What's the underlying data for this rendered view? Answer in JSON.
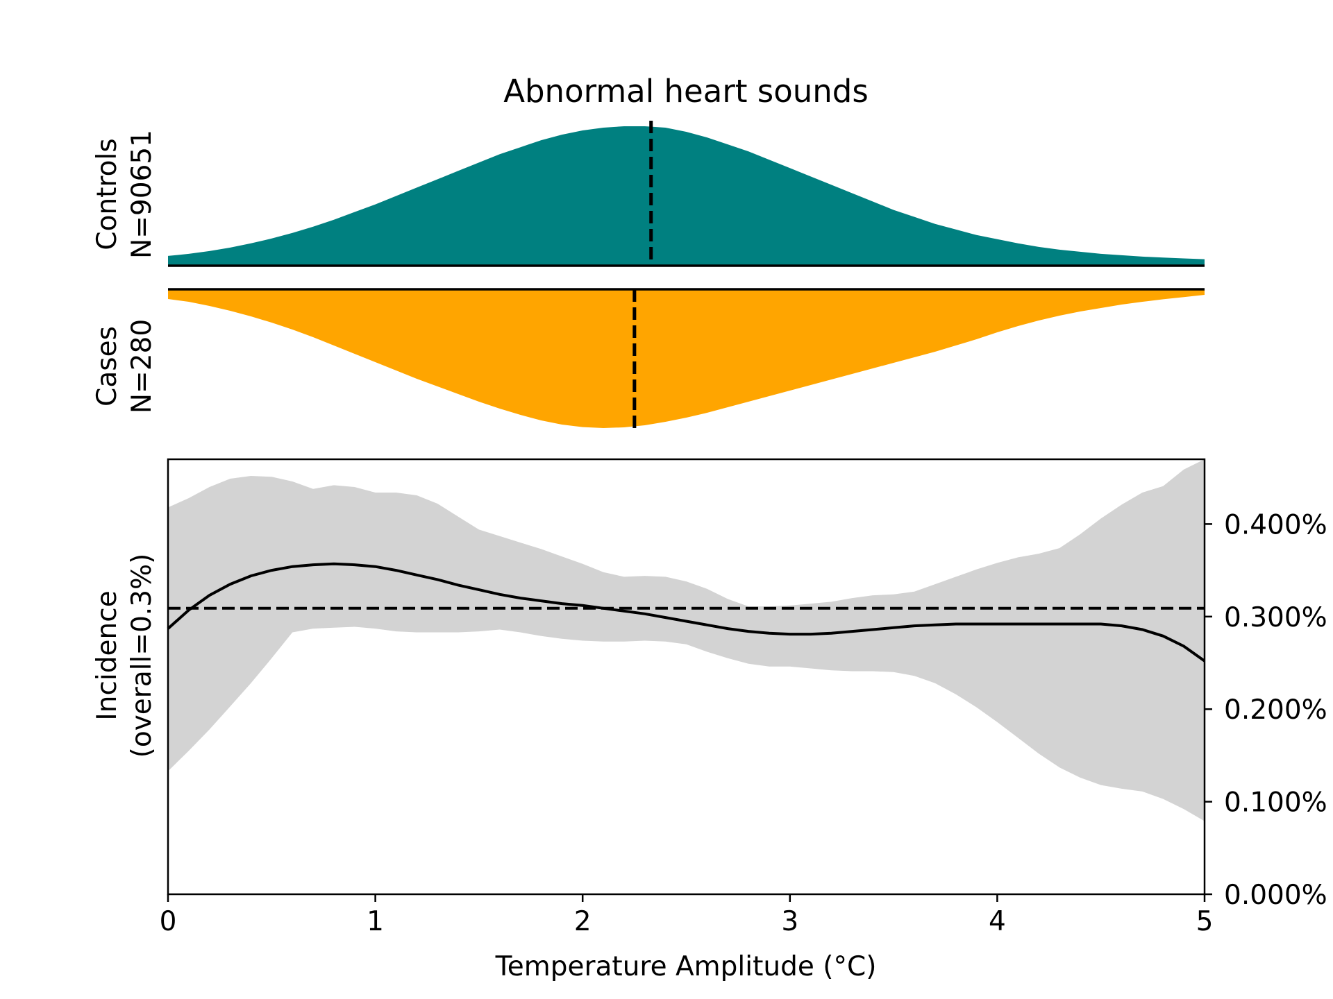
{
  "chart_data": [
    {
      "type": "area",
      "panel": "controls",
      "title": "Abnormal heart sounds",
      "ylabel_line1": "Controls",
      "ylabel_line2": "N=90651",
      "color": "#008080",
      "x": [
        0,
        0.1,
        0.2,
        0.3,
        0.4,
        0.5,
        0.6,
        0.7,
        0.8,
        0.9,
        1.0,
        1.1,
        1.2,
        1.3,
        1.4,
        1.5,
        1.6,
        1.7,
        1.8,
        1.9,
        2.0,
        2.1,
        2.2,
        2.3,
        2.4,
        2.5,
        2.6,
        2.7,
        2.8,
        2.9,
        3.0,
        3.1,
        3.2,
        3.3,
        3.4,
        3.5,
        3.6,
        3.7,
        3.8,
        3.9,
        4.0,
        4.1,
        4.2,
        4.3,
        4.4,
        4.5,
        4.6,
        4.7,
        4.8,
        4.9,
        5.0
      ],
      "density": [
        0.07,
        0.085,
        0.105,
        0.13,
        0.16,
        0.195,
        0.235,
        0.28,
        0.33,
        0.385,
        0.44,
        0.5,
        0.56,
        0.62,
        0.68,
        0.74,
        0.8,
        0.85,
        0.9,
        0.94,
        0.97,
        0.99,
        1.0,
        1.0,
        0.99,
        0.96,
        0.92,
        0.87,
        0.82,
        0.76,
        0.7,
        0.64,
        0.58,
        0.52,
        0.46,
        0.4,
        0.35,
        0.3,
        0.26,
        0.22,
        0.19,
        0.16,
        0.135,
        0.115,
        0.1,
        0.085,
        0.075,
        0.065,
        0.058,
        0.052,
        0.047
      ],
      "median": 2.33
    },
    {
      "type": "area",
      "panel": "cases",
      "ylabel_line1": "Cases",
      "ylabel_line2": "N=280",
      "color": "#FFA500",
      "x": [
        0,
        0.1,
        0.2,
        0.3,
        0.4,
        0.5,
        0.6,
        0.7,
        0.8,
        0.9,
        1.0,
        1.1,
        1.2,
        1.3,
        1.4,
        1.5,
        1.6,
        1.7,
        1.8,
        1.9,
        2.0,
        2.1,
        2.2,
        2.3,
        2.4,
        2.5,
        2.6,
        2.7,
        2.8,
        2.9,
        3.0,
        3.1,
        3.2,
        3.3,
        3.4,
        3.5,
        3.6,
        3.7,
        3.8,
        3.9,
        4.0,
        4.1,
        4.2,
        4.3,
        4.4,
        4.5,
        4.6,
        4.7,
        4.8,
        4.9,
        5.0
      ],
      "density": [
        0.07,
        0.09,
        0.12,
        0.155,
        0.195,
        0.24,
        0.29,
        0.345,
        0.405,
        0.465,
        0.525,
        0.585,
        0.645,
        0.7,
        0.755,
        0.81,
        0.86,
        0.905,
        0.945,
        0.975,
        0.993,
        1.0,
        0.995,
        0.98,
        0.955,
        0.925,
        0.89,
        0.85,
        0.81,
        0.77,
        0.73,
        0.69,
        0.65,
        0.61,
        0.57,
        0.53,
        0.49,
        0.45,
        0.405,
        0.36,
        0.31,
        0.265,
        0.225,
        0.19,
        0.16,
        0.135,
        0.11,
        0.09,
        0.072,
        0.056,
        0.04
      ],
      "median": 2.25
    },
    {
      "type": "line",
      "panel": "incidence",
      "xlabel": "Temperature Amplitude (°C)",
      "ylabel_line1": "Incidence",
      "ylabel_line2": "(overall=0.3%)",
      "xlim": [
        0,
        5
      ],
      "ylim": [
        0,
        0.0047
      ],
      "xticks": [
        0,
        1,
        2,
        3,
        4,
        5
      ],
      "xtick_labels": [
        "0",
        "1",
        "2",
        "3",
        "4",
        "5"
      ],
      "yticks": [
        0,
        0.001,
        0.002,
        0.003,
        0.004
      ],
      "ytick_labels": [
        "0.000%",
        "0.100%",
        "0.200%",
        "0.300%",
        "0.400%"
      ],
      "overall": 0.00309,
      "band_color": "#d3d3d3",
      "x": [
        0,
        0.1,
        0.2,
        0.3,
        0.4,
        0.5,
        0.6,
        0.7,
        0.8,
        0.9,
        1.0,
        1.1,
        1.2,
        1.3,
        1.4,
        1.5,
        1.6,
        1.7,
        1.8,
        1.9,
        2.0,
        2.1,
        2.2,
        2.3,
        2.4,
        2.5,
        2.6,
        2.7,
        2.8,
        2.9,
        3.0,
        3.1,
        3.2,
        3.3,
        3.4,
        3.5,
        3.6,
        3.7,
        3.8,
        3.9,
        4.0,
        4.1,
        4.2,
        4.3,
        4.4,
        4.5,
        4.6,
        4.7,
        4.8,
        4.9,
        5.0
      ],
      "y": [
        0.00287,
        0.00307,
        0.00323,
        0.00335,
        0.00344,
        0.0035,
        0.00354,
        0.00356,
        0.00357,
        0.00356,
        0.00354,
        0.0035,
        0.00345,
        0.0034,
        0.00334,
        0.00329,
        0.00324,
        0.0032,
        0.00317,
        0.00314,
        0.00312,
        0.00309,
        0.00306,
        0.00303,
        0.00299,
        0.00295,
        0.00291,
        0.00287,
        0.00284,
        0.00282,
        0.00281,
        0.00281,
        0.00282,
        0.00284,
        0.00286,
        0.00288,
        0.0029,
        0.00291,
        0.00292,
        0.00292,
        0.00292,
        0.00292,
        0.00292,
        0.00292,
        0.00292,
        0.00292,
        0.0029,
        0.00286,
        0.00279,
        0.00268,
        0.00252
      ],
      "upper": [
        0.00418,
        0.00428,
        0.0044,
        0.00449,
        0.00452,
        0.00451,
        0.00446,
        0.00438,
        0.00442,
        0.0044,
        0.00434,
        0.00434,
        0.00431,
        0.00422,
        0.00408,
        0.00394,
        0.00387,
        0.0038,
        0.00373,
        0.00365,
        0.00357,
        0.00348,
        0.00343,
        0.00344,
        0.00343,
        0.00338,
        0.0033,
        0.00319,
        0.00311,
        0.00311,
        0.00312,
        0.00314,
        0.00316,
        0.0032,
        0.00323,
        0.00324,
        0.00327,
        0.00335,
        0.00343,
        0.00351,
        0.00358,
        0.00364,
        0.00368,
        0.00374,
        0.00389,
        0.00406,
        0.00421,
        0.00434,
        0.00441,
        0.00459,
        0.00475
      ],
      "lower": [
        0.00133,
        0.00155,
        0.00178,
        0.00203,
        0.00228,
        0.00255,
        0.00283,
        0.00287,
        0.00288,
        0.00289,
        0.00287,
        0.00284,
        0.00283,
        0.00283,
        0.00283,
        0.00284,
        0.00286,
        0.00283,
        0.00279,
        0.00276,
        0.00274,
        0.00273,
        0.00273,
        0.00274,
        0.00273,
        0.0027,
        0.00262,
        0.00255,
        0.00249,
        0.00246,
        0.00246,
        0.00244,
        0.00242,
        0.00241,
        0.00241,
        0.0024,
        0.00236,
        0.00228,
        0.00216,
        0.00202,
        0.00186,
        0.00169,
        0.00152,
        0.00137,
        0.00126,
        0.00118,
        0.00114,
        0.00111,
        0.00103,
        0.00092,
        0.00079
      ]
    }
  ]
}
